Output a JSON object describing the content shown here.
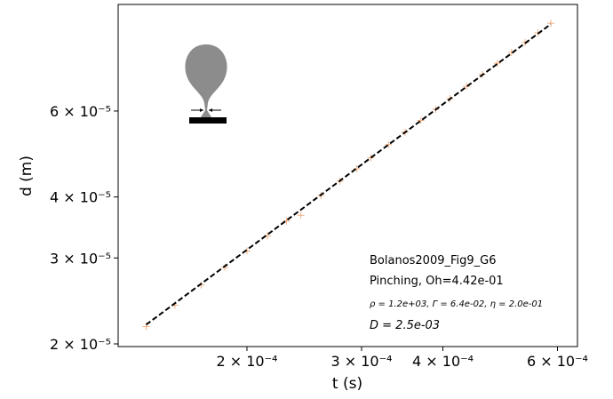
{
  "chart_data": {
    "type": "scatter",
    "xlabel": "t (s)",
    "ylabel": "d (m)",
    "xscale": "log",
    "yscale": "log",
    "xlim": [
      0.0001268,
      0.000644
    ],
    "ylim": [
      1.975e-05,
      9.92e-05
    ],
    "xticks": [
      {
        "value": 0.0002,
        "label": "2 × 10⁻⁴"
      },
      {
        "value": 0.0003,
        "label": "3 × 10⁻⁴"
      },
      {
        "value": 0.0004,
        "label": "4 × 10⁻⁴"
      },
      {
        "value": 0.0006,
        "label": "6 × 10⁻⁴"
      }
    ],
    "yticks": [
      {
        "value": 2e-05,
        "label": "2 × 10⁻⁵"
      },
      {
        "value": 3e-05,
        "label": "3 × 10⁻⁵"
      },
      {
        "value": 4e-05,
        "label": "4 × 10⁻⁵"
      },
      {
        "value": 6e-05,
        "label": "6 × 10⁻⁵"
      }
    ],
    "annotations": [
      "Bolanos2009_Fig9_G6",
      "Pinching, Oh=4.42e-01",
      "ρ = 1.2e+03, Γ = 6.4e-02, η = 2.0e-01",
      "D = 2.5e-03"
    ],
    "series": [
      {
        "color": "#f4b183",
        "marker": "+",
        "x": [
          0.00014,
          0.000155,
          0.00017,
          0.000185,
          0.0002,
          0.000215,
          0.00023,
          0.000242,
          0.00026,
          0.000278,
          0.000295,
          0.00031,
          0.00033,
          0.00035,
          0.00037,
          0.00039,
          0.00041,
          0.000435,
          0.00046,
          0.000485,
          0.00051,
          0.000535,
          0.00056,
          0.000586
        ],
        "values": [
          2.17e-05,
          2.4e-05,
          2.64e-05,
          2.87e-05,
          3.1e-05,
          3.33e-05,
          3.57e-05,
          3.67e-05,
          4.03e-05,
          4.31e-05,
          4.57e-05,
          4.81e-05,
          5.12e-05,
          5.43e-05,
          5.74e-05,
          6.05e-05,
          6.36e-05,
          6.74e-05,
          7.13e-05,
          7.52e-05,
          7.91e-05,
          8.29e-05,
          8.68e-05,
          9.08e-05
        ]
      },
      {
        "color": "#000000",
        "dash": true,
        "x": [
          0.00014,
          0.000586
        ],
        "values": [
          2.19e-05,
          9.04e-05
        ]
      }
    ]
  }
}
